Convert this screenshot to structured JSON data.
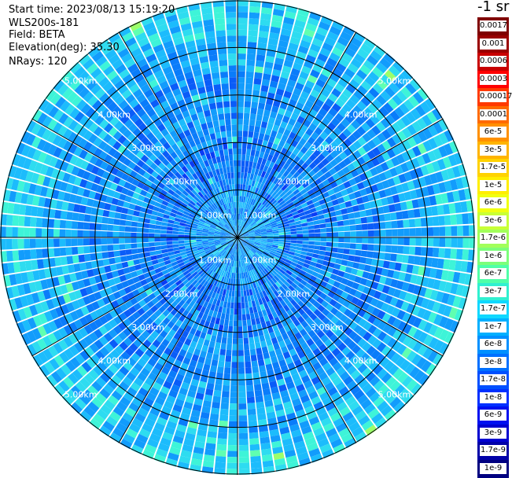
{
  "header": {
    "start_time": "Start time: 2023/08/13 15:19:20",
    "instrument": "WLS200s-181",
    "field": "Field: BETA",
    "elevation": "Elevation(deg): 35.30",
    "nrays": "NRays: 120"
  },
  "colorbar": {
    "unit": "-1 sr",
    "labels": [
      "0.0017",
      "0.001",
      "0.0006",
      "0.0003",
      "0.00017",
      "0.0001",
      "6e-5",
      "3e-5",
      "1.7e-5",
      "1e-5",
      "6e-6",
      "3e-6",
      "1.7e-6",
      "1e-6",
      "6e-7",
      "3e-7",
      "1.7e-7",
      "1e-7",
      "6e-8",
      "3e-8",
      "1.7e-8",
      "1e-8",
      "6e-9",
      "3e-9",
      "1.7e-9",
      "1e-9"
    ],
    "colors": [
      "#800000",
      "#9a0000",
      "#c80000",
      "#ff0000",
      "#ff3a00",
      "#ff6a00",
      "#ff9000",
      "#ffb400",
      "#ffd200",
      "#ffee00",
      "#f0ff10",
      "#c8ff36",
      "#a2ff5a",
      "#7cff7a",
      "#50ffa8",
      "#30f0d0",
      "#10d8ff",
      "#00b0ff",
      "#0090ff",
      "#0070ff",
      "#0050ff",
      "#0030ff",
      "#0010f0",
      "#0000d0",
      "#0000a8",
      "#000080"
    ]
  },
  "chart_data": {
    "type": "heatmap",
    "subtype": "polar PPI lidar scan",
    "field": "BETA",
    "n_rays": 120,
    "max_range_km": 5.0,
    "range_ring_labels_km": [
      "1.00km",
      "2.00km",
      "3.00km",
      "4.00km",
      "5.00km"
    ],
    "radial_spokes_deg": [
      0,
      30,
      60,
      90,
      120,
      150,
      180,
      210,
      240,
      270,
      300,
      330
    ],
    "value_range": [
      1e-09,
      0.0017
    ],
    "scale": "log",
    "dominant_values": "mostly 1e-7 to 1.7e-6 (blue to cyan), sparse 3e-6 to 6e-6 (green/yellow) near outer edge"
  }
}
